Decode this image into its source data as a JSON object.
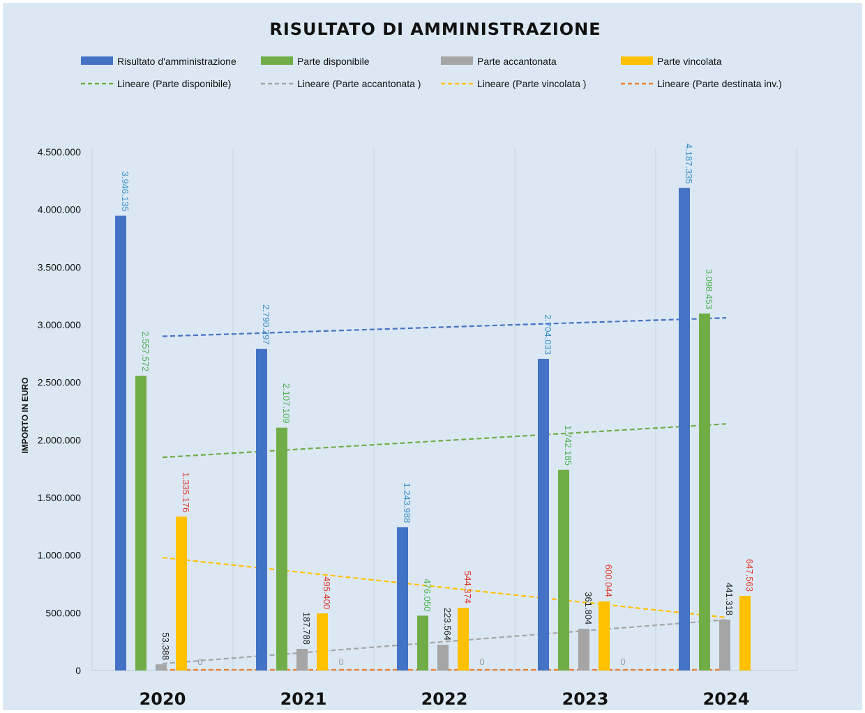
{
  "chart_data": {
    "type": "bar",
    "title": "RISULTATO  DI AMMINISTRAZIONE",
    "ylabel": "IMPORTO IN EURO",
    "ylim": [
      0,
      4500000
    ],
    "y_ticks": [
      "0",
      "500.000",
      "1.000.000",
      "1.500.000",
      "2.000.000",
      "2.500.000",
      "3.000.000",
      "3.500.000",
      "4.000.000",
      "4.500.000"
    ],
    "categories": [
      "2020",
      "2021",
      "2022",
      "2023",
      "2024"
    ],
    "series": [
      {
        "name": "Risultato d'amministrazione",
        "color": "#4472c4",
        "label_color": "#3b8fc9",
        "values": [
          3946135,
          2790297,
          1243988,
          2704033,
          4187335
        ],
        "labels": [
          "3.946.135",
          "2.790.297",
          "1.243.988",
          "2.704.033",
          "4.187.335"
        ]
      },
      {
        "name": "Parte disponibile",
        "color": "#70ad47",
        "label_color": "#4caf50",
        "values": [
          2557572,
          2107109,
          476050,
          1742185,
          3098453
        ],
        "labels": [
          "2.557.572",
          "2.107.109",
          "476.050",
          "1.742.185",
          "3.098.453"
        ]
      },
      {
        "name": "Parte accantonata",
        "color": "#a5a5a5",
        "label_color": "#222222",
        "values": [
          53388,
          187788,
          223564,
          361804,
          441318
        ],
        "labels": [
          "53.388",
          "187.788",
          "223.564",
          "361.804",
          "441.318"
        ]
      },
      {
        "name": "Parte vincolata",
        "color": "#ffc000",
        "label_color": "#e0382c",
        "values": [
          1335176,
          495400,
          544374,
          600044,
          647563
        ],
        "labels": [
          "1.335.176",
          "495.400",
          "544.374",
          "600.044",
          "647.563"
        ]
      },
      {
        "name": "",
        "color": "#ed7d31",
        "label_color": "#9a9a9a",
        "values": [
          0,
          0,
          0,
          0,
          0
        ],
        "labels": [
          "0",
          "0",
          "0",
          "0",
          ""
        ]
      }
    ],
    "trendlines": [
      {
        "name": "",
        "color": "#4472c4",
        "start": 2900000,
        "end": 3060000
      },
      {
        "name": "Lineare (Parte disponibile)",
        "color": "#70ad47",
        "start": 1850000,
        "end": 2140000
      },
      {
        "name": "Lineare (Parte accantonata )",
        "color": "#a5a5a5",
        "start": 60000,
        "end": 440000
      },
      {
        "name": "Lineare (Parte vincolata )",
        "color": "#ffc000",
        "start": 980000,
        "end": 460000
      },
      {
        "name": "Lineare (Parte destinata inv.)",
        "color": "#ed7d31",
        "start": 0,
        "end": 0
      }
    ],
    "legend": [
      {
        "label": "Risultato d'amministrazione",
        "kind": "bar",
        "color": "#4472c4"
      },
      {
        "label": "Parte disponibile",
        "kind": "bar",
        "color": "#70ad47"
      },
      {
        "label": "Parte accantonata",
        "kind": "bar",
        "color": "#a5a5a5"
      },
      {
        "label": "Parte vincolata",
        "kind": "bar",
        "color": "#ffc000"
      },
      {
        "label": "Lineare (Parte disponibile)",
        "kind": "dash",
        "color": "#70ad47"
      },
      {
        "label": "Lineare (Parte accantonata )",
        "kind": "dash",
        "color": "#a5a5a5"
      },
      {
        "label": "Lineare (Parte vincolata )",
        "kind": "dash",
        "color": "#ffc000"
      },
      {
        "label": "Lineare (Parte destinata inv.)",
        "kind": "dash",
        "color": "#ed7d31"
      }
    ],
    "grid": "vertical category separators",
    "legend_position": "top"
  }
}
